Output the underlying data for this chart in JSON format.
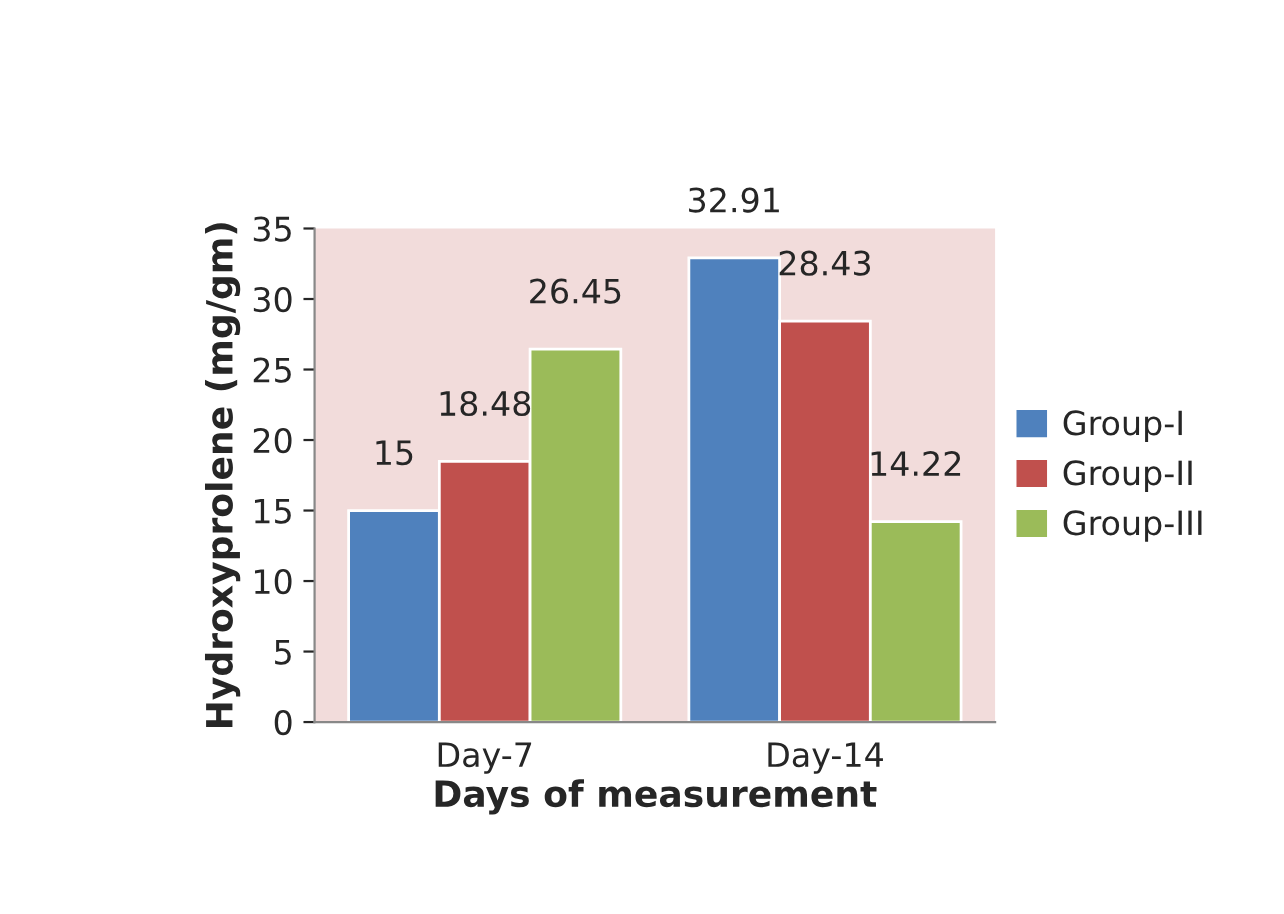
{
  "chart_data": {
    "type": "bar",
    "xlabel": "Days of measurement",
    "ylabel": "Hydroxyprolene (mg/gm)",
    "categories": [
      "Day-7",
      "Day-14"
    ],
    "series": [
      {
        "name": "Group-I",
        "color": "#4f81bd",
        "values": [
          15,
          32.91
        ]
      },
      {
        "name": "Group-II",
        "color": "#c0504d",
        "values": [
          18.48,
          28.43
        ]
      },
      {
        "name": "Group-III",
        "color": "#9bbb59",
        "values": [
          26.45,
          14.22
        ]
      }
    ],
    "ylim": [
      0,
      35
    ],
    "yticks": [
      0,
      5,
      10,
      15,
      20,
      25,
      30,
      35
    ],
    "data_labels": true,
    "legend": "right",
    "grid": false
  }
}
